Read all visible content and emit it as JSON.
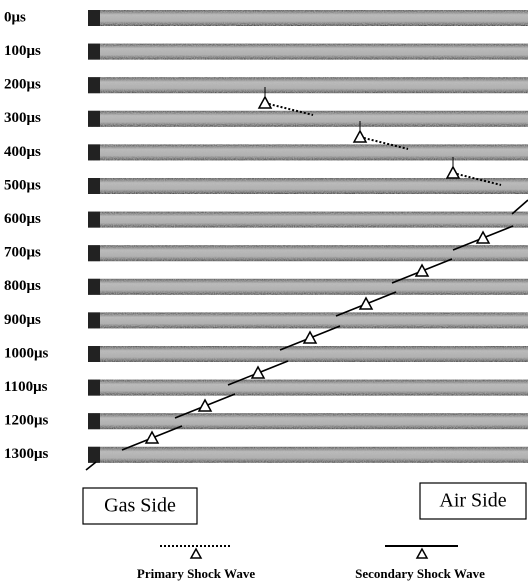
{
  "frames": [
    "0μs",
    "100μs",
    "200μs",
    "300μs",
    "400μs",
    "500μs",
    "600μs",
    "700μs",
    "800μs",
    "900μs",
    "1000μs",
    "1100μs",
    "1200μs",
    "1300μs"
  ],
  "labels": {
    "gas_side": "Gas Side",
    "air_side": "Air Side"
  },
  "legend": {
    "primary": "Primary Shock Wave",
    "secondary": "Secondary Shock Wave"
  }
}
